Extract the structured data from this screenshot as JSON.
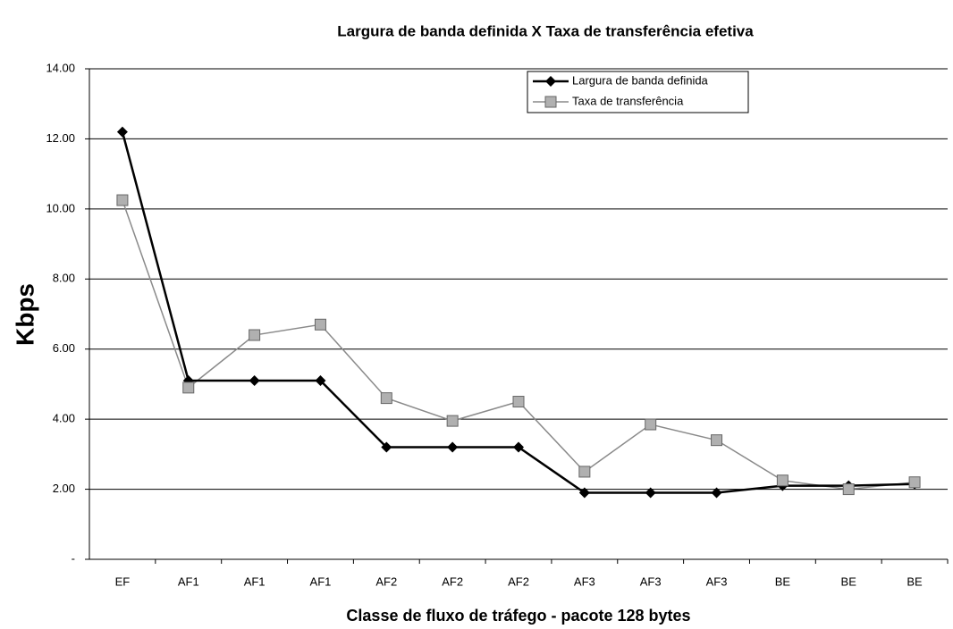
{
  "chart_data": {
    "type": "line",
    "title": "Largura de banda definida X Taxa de transferência efetiva",
    "x_label": "Classe de fluxo de tráfego - pacote 128 bytes",
    "y_label": "Kbps",
    "categories": [
      "EF",
      "AF1",
      "AF1",
      "AF1",
      "AF2",
      "AF2",
      "AF2",
      "AF3",
      "AF3",
      "AF3",
      "BE",
      "BE",
      "BE"
    ],
    "series": [
      {
        "name": "Largura de banda definida",
        "color": "#000000",
        "marker": "diamond",
        "values": [
          12.2,
          5.1,
          5.1,
          5.1,
          3.2,
          3.2,
          3.2,
          1.9,
          1.9,
          1.9,
          2.1,
          2.1,
          2.15
        ]
      },
      {
        "name": "Taxa de transferência",
        "color": "#8a8a8a",
        "marker": "square",
        "values": [
          10.25,
          4.9,
          6.4,
          6.7,
          4.6,
          3.95,
          4.5,
          2.5,
          3.85,
          3.4,
          2.25,
          2.0,
          2.2
        ]
      }
    ],
    "ylim": [
      0,
      14
    ],
    "yticks": [
      {
        "value": 0,
        "label": "-"
      },
      {
        "value": 2,
        "label": "2.00"
      },
      {
        "value": 4,
        "label": "4.00"
      },
      {
        "value": 6,
        "label": "6.00"
      },
      {
        "value": 8,
        "label": "8.00"
      },
      {
        "value": 10,
        "label": "10.00"
      },
      {
        "value": 12,
        "label": "12.00"
      },
      {
        "value": 14,
        "label": "14.00"
      }
    ],
    "grid": true
  }
}
